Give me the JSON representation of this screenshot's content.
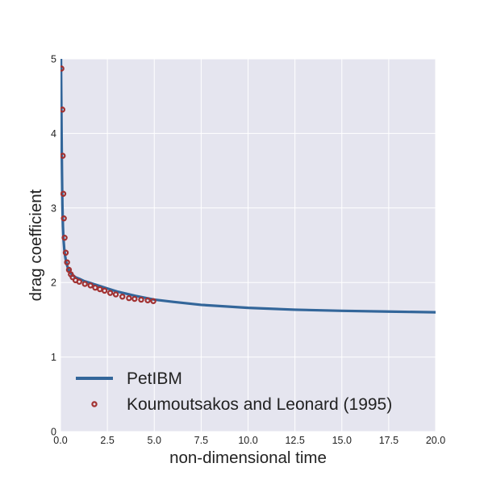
{
  "chart_data": {
    "type": "line",
    "title": "",
    "xlabel": "non-dimensional time",
    "ylabel": "drag coefficient",
    "xlim": [
      0,
      20
    ],
    "ylim": [
      0,
      5
    ],
    "xticks": [
      0,
      2.5,
      5,
      7.5,
      10,
      12.5,
      15,
      17.5,
      20
    ],
    "xtick_labels": [
      "0.0",
      "2.5",
      "5.0",
      "7.5",
      "10.0",
      "12.5",
      "15.0",
      "17.5",
      "20.0"
    ],
    "yticks": [
      0,
      1,
      2,
      3,
      4,
      5
    ],
    "ytick_labels": [
      "0",
      "1",
      "2",
      "3",
      "4",
      "5"
    ],
    "grid": true,
    "legend_position": "lower-left",
    "colors": {
      "background": "#e5e5ef",
      "grid": "#ffffff",
      "line": "#33669a",
      "marker": "#a23232"
    },
    "series": [
      {
        "name": "PetIBM",
        "style": "line",
        "x": [
          0.02,
          0.04,
          0.06,
          0.08,
          0.1,
          0.13,
          0.16,
          0.2,
          0.25,
          0.3,
          0.35,
          0.4,
          0.5,
          0.6,
          0.7,
          0.8,
          1.0,
          1.25,
          1.5,
          2.0,
          2.5,
          3.0,
          4.0,
          5.0,
          6.0,
          7.5,
          10.0,
          12.5,
          15.0,
          17.5,
          20.0
        ],
        "y": [
          5.2,
          4.55,
          3.95,
          3.45,
          3.05,
          2.75,
          2.58,
          2.45,
          2.35,
          2.28,
          2.23,
          2.19,
          2.14,
          2.11,
          2.09,
          2.07,
          2.05,
          2.02,
          2.0,
          1.96,
          1.92,
          1.88,
          1.82,
          1.77,
          1.74,
          1.7,
          1.66,
          1.635,
          1.62,
          1.61,
          1.6
        ]
      },
      {
        "name": "Koumoutsakos and Leonard (1995)",
        "style": "markers",
        "x": [
          0.05,
          0.1,
          0.12,
          0.15,
          0.18,
          0.22,
          0.28,
          0.35,
          0.45,
          0.55,
          0.65,
          0.8,
          1.0,
          1.3,
          1.6,
          1.85,
          2.1,
          2.35,
          2.65,
          2.95,
          3.3,
          3.65,
          3.95,
          4.3,
          4.65,
          4.95
        ],
        "y": [
          4.87,
          4.32,
          3.7,
          3.19,
          2.86,
          2.6,
          2.4,
          2.27,
          2.17,
          2.11,
          2.07,
          2.03,
          2.01,
          1.98,
          1.96,
          1.93,
          1.91,
          1.89,
          1.86,
          1.84,
          1.81,
          1.79,
          1.78,
          1.77,
          1.76,
          1.75
        ]
      }
    ]
  }
}
